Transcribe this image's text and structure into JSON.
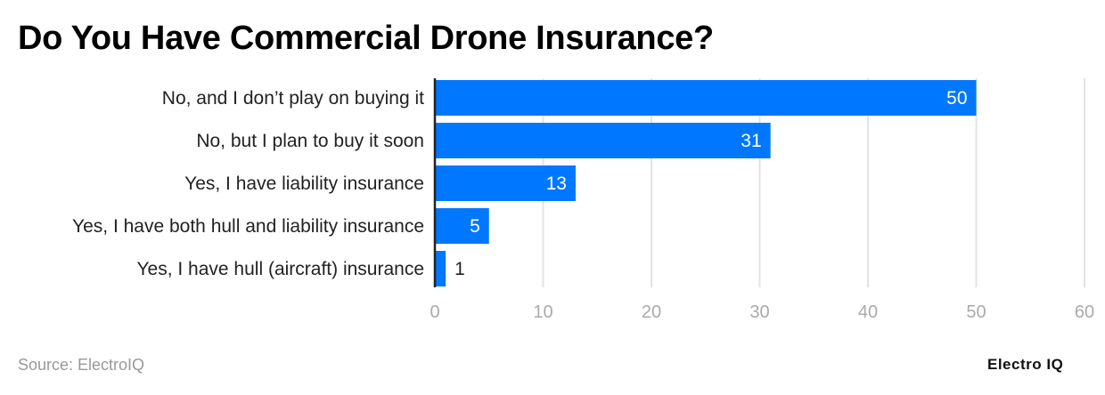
{
  "chart_data": {
    "type": "bar",
    "orientation": "horizontal",
    "title": "Do You Have Commercial Drone Insurance?",
    "categories": [
      "No, and I don’t play on buying it",
      "No, but I plan to buy it soon",
      "Yes, I have liability insurance",
      "Yes, I have both hull and liability insurance",
      "Yes, I have hull (aircraft) insurance"
    ],
    "values": [
      50,
      31,
      13,
      5,
      1
    ],
    "xlim": [
      0,
      60
    ],
    "xticks": [
      0,
      10,
      20,
      30,
      40,
      50,
      60
    ],
    "grid": true,
    "bar_color": "#0077FF",
    "xlabel": "",
    "ylabel": ""
  },
  "footer": {
    "source": "Source: ElectroIQ",
    "logo": "Electro IQ"
  }
}
